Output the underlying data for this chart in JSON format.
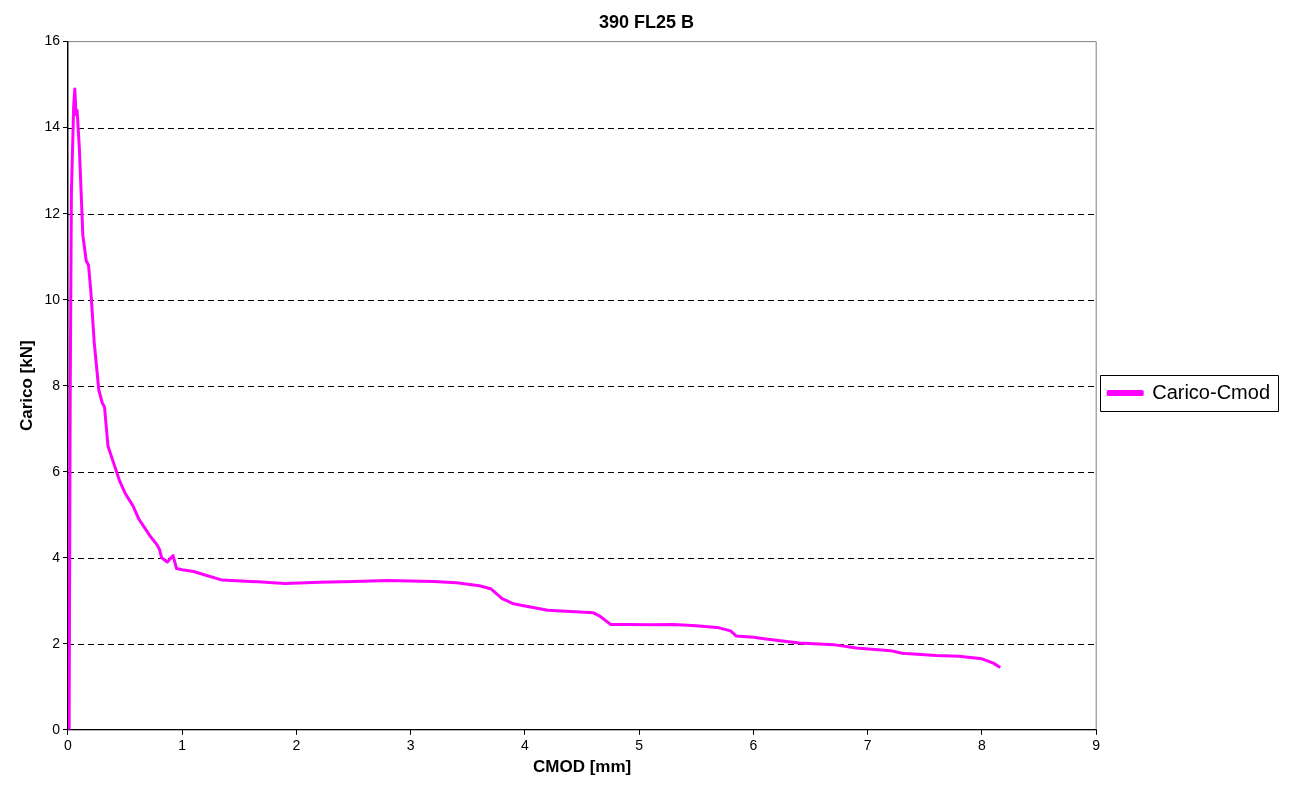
{
  "chart_data": {
    "type": "line",
    "title": "390 FL25 B",
    "xlabel": "CMOD [mm]",
    "ylabel": "Carico [kN]",
    "xlim": [
      0,
      9
    ],
    "xticks": [
      0,
      1,
      2,
      3,
      4,
      5,
      6,
      7,
      8,
      9
    ],
    "ylim": [
      0,
      16
    ],
    "yticks": [
      0,
      2,
      4,
      6,
      8,
      10,
      12,
      14,
      16
    ],
    "grid": "y",
    "legend": "right",
    "marker": "none",
    "line_style": "solid",
    "series": [
      {
        "name": "Carico-Cmod",
        "color": "#ff00ff",
        "x": [
          0.01,
          0.02,
          0.03,
          0.05,
          0.06,
          0.07,
          0.08,
          0.1,
          0.13,
          0.16,
          0.18,
          0.2,
          0.23,
          0.27,
          0.3,
          0.32,
          0.35,
          0.4,
          0.45,
          0.5,
          0.57,
          0.62,
          0.67,
          0.72,
          0.78,
          0.8,
          0.82,
          0.87,
          0.92,
          0.95,
          1.0,
          1.1,
          1.2,
          1.35,
          1.6,
          1.9,
          2.2,
          2.5,
          2.8,
          3.0,
          3.2,
          3.4,
          3.6,
          3.7,
          3.8,
          3.9,
          4.0,
          4.2,
          4.4,
          4.6,
          4.65,
          4.75,
          4.9,
          5.1,
          5.3,
          5.5,
          5.7,
          5.8,
          5.85,
          6.0,
          6.2,
          6.4,
          6.7,
          6.9,
          7.2,
          7.3,
          7.6,
          7.8,
          8.0,
          8.1,
          8.16
        ],
        "values": [
          0,
          8,
          12.5,
          14.5,
          14.9,
          14.3,
          14.4,
          13.5,
          11.5,
          10.9,
          10.8,
          10.2,
          9,
          7.9,
          7.6,
          7.5,
          6.6,
          6.2,
          5.8,
          5.5,
          5.2,
          4.9,
          4.7,
          4.5,
          4.3,
          4.2,
          4.0,
          3.9,
          4.05,
          3.75,
          3.72,
          3.68,
          3.6,
          3.48,
          3.45,
          3.4,
          3.43,
          3.45,
          3.47,
          3.46,
          3.45,
          3.42,
          3.35,
          3.28,
          3.05,
          2.93,
          2.88,
          2.78,
          2.75,
          2.72,
          2.65,
          2.45,
          2.45,
          2.44,
          2.45,
          2.42,
          2.37,
          2.3,
          2.18,
          2.15,
          2.08,
          2.02,
          1.98,
          1.9,
          1.84,
          1.78,
          1.73,
          1.71,
          1.65,
          1.55,
          1.45
        ]
      }
    ]
  }
}
